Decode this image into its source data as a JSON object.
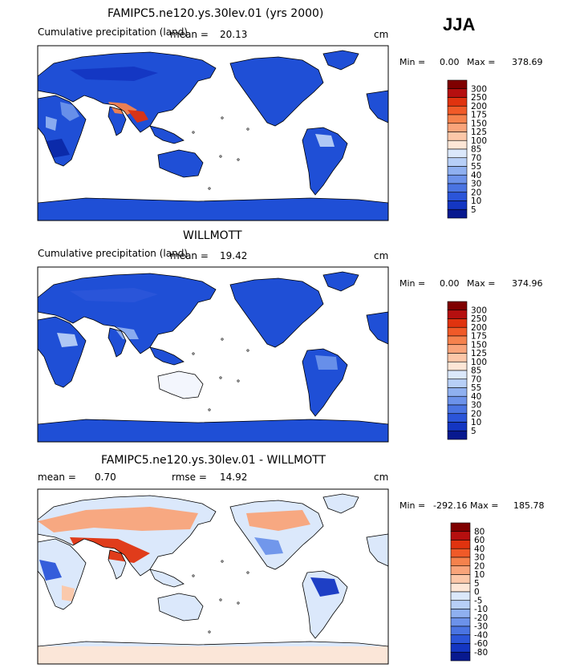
{
  "season": "JJA",
  "colors": {
    "land_blue": "#1f4fd6",
    "land_deep": "#0b28a8",
    "ocean": "#ffffff",
    "coast": "#000000"
  },
  "chart_data": [
    {
      "type": "heatmap",
      "title": "FAMIPC5.ne120.ys.30lev.01 (yrs 2000)",
      "subtitle_left": "Cumulative precipitation (land)",
      "stat_label": "mean =",
      "stat_value": "20.13",
      "units": "cm",
      "min_label": "Min =",
      "min_value": "0.00",
      "max_label": "Max =",
      "max_value": "378.69",
      "colorbar": {
        "labels": [
          "300",
          "250",
          "200",
          "175",
          "150",
          "125",
          "100",
          "85",
          "70",
          "55",
          "40",
          "30",
          "20",
          "10",
          "5"
        ],
        "colors": [
          "#7f0000",
          "#b50f0f",
          "#e0330f",
          "#f05a28",
          "#f5824d",
          "#f9a47a",
          "#fcc7a8",
          "#fde6d6",
          "#dbe8fb",
          "#b7cff7",
          "#8fb0f0",
          "#6c92ea",
          "#4a74e2",
          "#2b55d9",
          "#1436c2",
          "#08198f"
        ]
      }
    },
    {
      "type": "heatmap",
      "title": "WILLMOTT",
      "subtitle_left": "Cumulative precipitation (land)",
      "stat_label": "mean =",
      "stat_value": "19.42",
      "units": "cm",
      "min_label": "Min =",
      "min_value": "0.00",
      "max_label": "Max =",
      "max_value": "374.96",
      "colorbar": {
        "labels": [
          "300",
          "250",
          "200",
          "175",
          "150",
          "125",
          "100",
          "85",
          "70",
          "55",
          "40",
          "30",
          "20",
          "10",
          "5"
        ],
        "colors": [
          "#7f0000",
          "#b50f0f",
          "#e0330f",
          "#f05a28",
          "#f5824d",
          "#f9a47a",
          "#fcc7a8",
          "#fde6d6",
          "#dbe8fb",
          "#b7cff7",
          "#8fb0f0",
          "#6c92ea",
          "#4a74e2",
          "#2b55d9",
          "#1436c2",
          "#08198f"
        ]
      }
    },
    {
      "type": "heatmap",
      "title": "FAMIPC5.ne120.ys.30lev.01 - WILLMOTT",
      "subtitle_left": "mean =",
      "subtitle_left_value": "0.70",
      "stat_label": "rmse =",
      "stat_value": "14.92",
      "units": "cm",
      "min_label": "Min =",
      "min_value": "-292.16",
      "max_label": "Max =",
      "max_value": "185.78",
      "colorbar": {
        "labels": [
          "80",
          "60",
          "40",
          "30",
          "20",
          "10",
          "5",
          "0",
          "-5",
          "-10",
          "-20",
          "-30",
          "-40",
          "-60",
          "-80"
        ],
        "colors": [
          "#7f0000",
          "#b50f0f",
          "#e0330f",
          "#f05a28",
          "#f5824d",
          "#f9a47a",
          "#fcc7a8",
          "#fde6d6",
          "#dbe8fb",
          "#b7cff7",
          "#8fb0f0",
          "#6c92ea",
          "#4a74e2",
          "#2b55d9",
          "#1436c2",
          "#08198f"
        ]
      }
    }
  ]
}
